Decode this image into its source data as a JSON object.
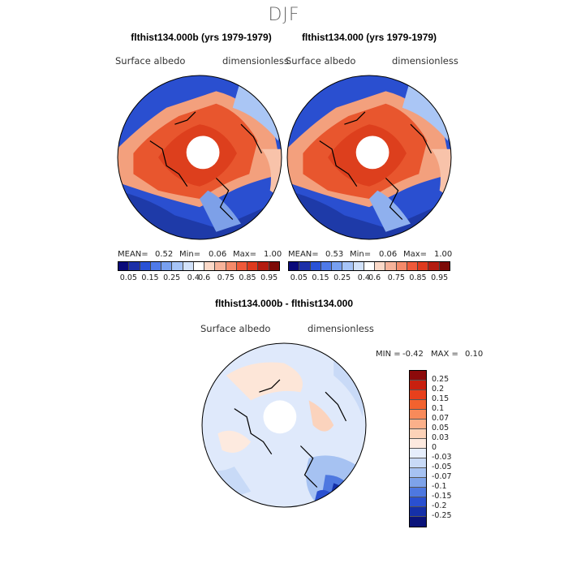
{
  "season": "DJF",
  "panels": [
    {
      "title": "flthist134.000b (yrs 1979-1979)",
      "variable": "Surface albedo",
      "units": "dimensionless",
      "mean_label": "MEAN=",
      "mean": "0.52",
      "min_label": "Min=",
      "min": "0.06",
      "max_label": "Max=",
      "max": "1.00"
    },
    {
      "title": "flthist134.000 (yrs 1979-1979)",
      "variable": "Surface albedo",
      "units": "dimensionless",
      "mean_label": "MEAN=",
      "mean": "0.53",
      "min_label": "Min=",
      "min": "0.06",
      "max_label": "Max=",
      "max": "1.00"
    }
  ],
  "abs_colorbar": {
    "colors": [
      "#0a0a7a",
      "#1c2fa8",
      "#2a52d6",
      "#4f7ae8",
      "#78a0f0",
      "#a6c4f7",
      "#d2e2fa",
      "#ffffff",
      "#fbd9c8",
      "#f7b39a",
      "#f58a6a",
      "#ef5a3a",
      "#de3a1e",
      "#b41c10",
      "#7d0a06"
    ],
    "labels": [
      "0.05",
      "0.15",
      "0.25",
      "0.4",
      "0.6",
      "0.75",
      "0.85",
      "0.95"
    ]
  },
  "diff": {
    "title": "flthist134.000b - flthist134.000",
    "variable": "Surface albedo",
    "units": "dimensionless",
    "min_label": "MIN =",
    "min": "-0.42",
    "max_label": "MAX =",
    "max": "0.10",
    "colors": [
      "#8c0a0a",
      "#c8200f",
      "#e8401c",
      "#f2622e",
      "#f88a5a",
      "#fbb08a",
      "#fcd2b8",
      "#fdeadf",
      "#e6eefc",
      "#c8daf7",
      "#a6c2f2",
      "#7ea3ea",
      "#4e78e0",
      "#2a50d0",
      "#1530a8",
      "#0a137a"
    ],
    "labels": [
      "0.25",
      "0.2",
      "0.15",
      "0.1",
      "0.07",
      "0.05",
      "0.03",
      "0",
      "-0.03",
      "-0.05",
      "-0.07",
      "-0.1",
      "-0.15",
      "-0.2",
      "-0.25"
    ]
  }
}
